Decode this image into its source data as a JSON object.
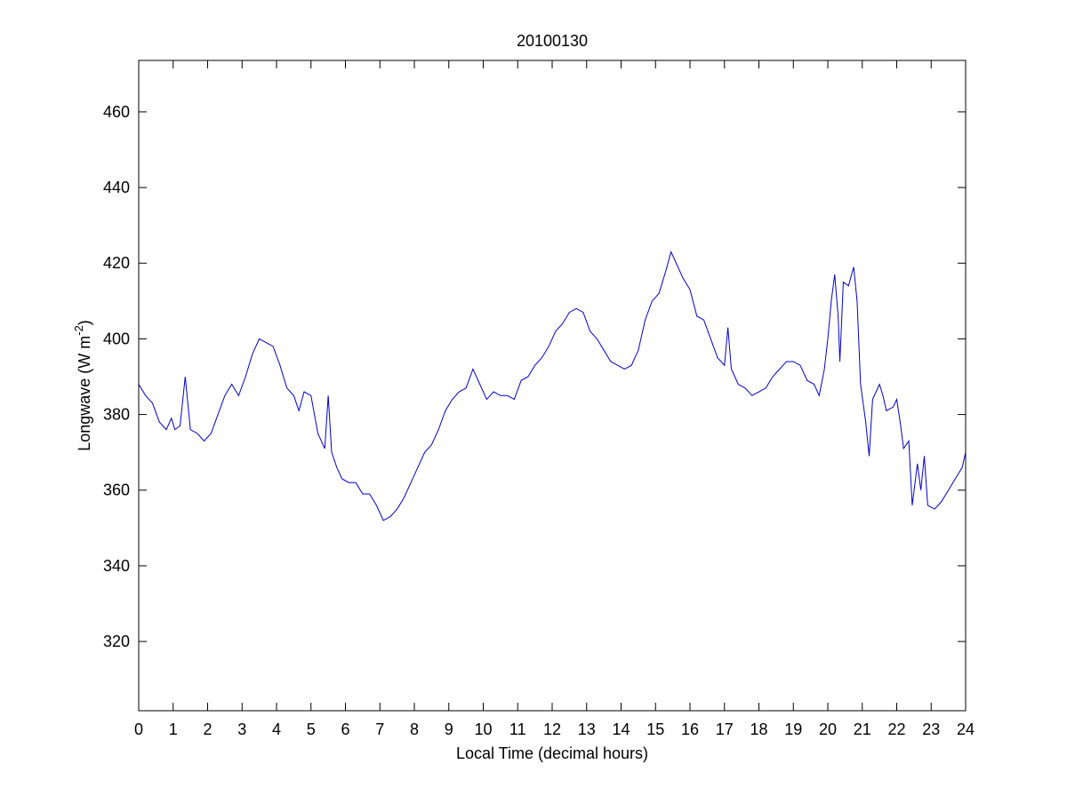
{
  "chart_data": {
    "type": "line",
    "title": "20100130",
    "xlabel": "Local Time (decimal hours)",
    "ylabel": {
      "text": "Longwave (W m",
      "superscript": "-2",
      "suffix": ")"
    },
    "xlim": [
      0,
      24
    ],
    "xticks": [
      0,
      1,
      2,
      3,
      4,
      5,
      6,
      7,
      8,
      9,
      10,
      11,
      12,
      13,
      14,
      15,
      16,
      17,
      18,
      19,
      20,
      21,
      22,
      23,
      24
    ],
    "ylim": [
      301.7,
      473.6
    ],
    "yticks": [
      320,
      340,
      360,
      380,
      400,
      420,
      440,
      460
    ],
    "grid": false,
    "series": [
      {
        "color": "#0000cc",
        "x": [
          0,
          0.2,
          0.4,
          0.6,
          0.8,
          0.95,
          1.05,
          1.2,
          1.35,
          1.5,
          1.7,
          1.9,
          2.1,
          2.3,
          2.5,
          2.7,
          2.9,
          3.1,
          3.3,
          3.5,
          3.7,
          3.9,
          4.1,
          4.3,
          4.5,
          4.65,
          4.8,
          5.0,
          5.1,
          5.2,
          5.4,
          5.5,
          5.6,
          5.75,
          5.9,
          6.1,
          6.3,
          6.5,
          6.7,
          6.9,
          7.1,
          7.3,
          7.5,
          7.7,
          7.9,
          8.1,
          8.3,
          8.5,
          8.7,
          8.9,
          9.1,
          9.3,
          9.5,
          9.7,
          9.9,
          10.1,
          10.3,
          10.5,
          10.7,
          10.9,
          11.1,
          11.3,
          11.5,
          11.7,
          11.9,
          12.1,
          12.3,
          12.5,
          12.7,
          12.9,
          13.1,
          13.3,
          13.5,
          13.7,
          13.9,
          14.1,
          14.3,
          14.5,
          14.7,
          14.9,
          15.1,
          15.3,
          15.45,
          15.6,
          15.8,
          16.0,
          16.2,
          16.4,
          16.6,
          16.8,
          17.0,
          17.1,
          17.2,
          17.4,
          17.6,
          17.8,
          18.0,
          18.2,
          18.4,
          18.6,
          18.8,
          19.0,
          19.2,
          19.4,
          19.6,
          19.75,
          19.9,
          20.0,
          20.1,
          20.2,
          20.3,
          20.35,
          20.45,
          20.6,
          20.75,
          20.85,
          20.95,
          21.1,
          21.2,
          21.3,
          21.5,
          21.6,
          21.7,
          21.9,
          22.0,
          22.1,
          22.2,
          22.35,
          22.45,
          22.6,
          22.7,
          22.8,
          22.9,
          23.1,
          23.3,
          23.5,
          23.7,
          23.9,
          24.0
        ],
        "values": [
          388,
          385,
          383,
          378,
          376,
          379,
          376,
          377,
          390,
          376,
          375,
          373,
          375,
          380,
          385,
          388,
          385,
          390,
          396,
          400,
          399,
          398,
          393,
          387,
          385,
          381,
          386,
          385,
          380,
          375,
          371,
          385,
          370,
          366,
          363,
          362,
          362,
          359,
          359,
          356,
          352,
          353,
          355,
          358,
          362,
          366,
          370,
          372,
          376,
          381,
          384,
          386,
          387,
          392,
          388,
          384,
          386,
          385,
          385,
          384,
          389,
          390,
          393,
          395,
          398,
          402,
          404,
          407,
          408,
          407,
          402,
          400,
          397,
          394,
          393,
          392,
          393,
          397,
          405,
          410,
          412,
          418,
          423,
          420,
          416,
          413,
          406,
          405,
          400,
          395,
          393,
          403,
          392,
          388,
          387,
          385,
          386,
          387,
          390,
          392,
          394,
          394,
          393,
          389,
          388,
          385,
          392,
          400,
          410,
          417,
          406,
          394,
          415,
          414,
          419,
          410,
          388,
          378,
          369,
          384,
          388,
          385,
          381,
          382,
          384,
          378,
          371,
          373,
          356,
          367,
          360,
          369,
          356,
          355,
          357,
          360,
          363,
          366,
          370
        ]
      }
    ]
  }
}
